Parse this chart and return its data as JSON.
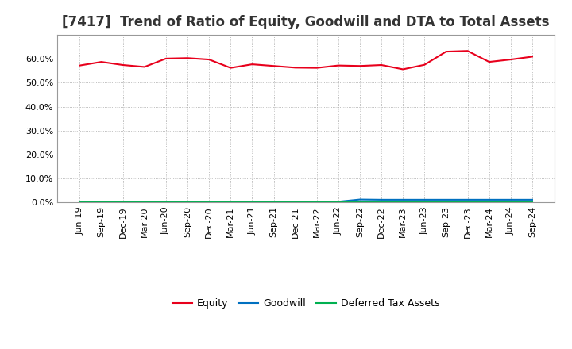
{
  "title": "[7417]  Trend of Ratio of Equity, Goodwill and DTA to Total Assets",
  "x_labels": [
    "Jun-19",
    "Sep-19",
    "Dec-19",
    "Mar-20",
    "Jun-20",
    "Sep-20",
    "Dec-20",
    "Mar-21",
    "Jun-21",
    "Sep-21",
    "Dec-21",
    "Mar-22",
    "Jun-22",
    "Sep-22",
    "Dec-22",
    "Mar-23",
    "Jun-23",
    "Sep-23",
    "Dec-23",
    "Mar-24",
    "Jun-24",
    "Sep-24"
  ],
  "equity": [
    0.572,
    0.587,
    0.574,
    0.566,
    0.601,
    0.603,
    0.597,
    0.562,
    0.577,
    0.57,
    0.563,
    0.562,
    0.572,
    0.57,
    0.574,
    0.556,
    0.575,
    0.63,
    0.633,
    0.587,
    0.597,
    0.609
  ],
  "goodwill": [
    0.003,
    0.003,
    0.003,
    0.003,
    0.003,
    0.003,
    0.003,
    0.003,
    0.003,
    0.003,
    0.003,
    0.003,
    0.003,
    0.012,
    0.011,
    0.011,
    0.011,
    0.011,
    0.011,
    0.011,
    0.011,
    0.011
  ],
  "dta": [
    0.0005,
    0.0005,
    0.0005,
    0.0005,
    0.0005,
    0.0005,
    0.0005,
    0.0005,
    0.0005,
    0.0005,
    0.0005,
    0.0005,
    0.0005,
    0.0005,
    0.0005,
    0.0005,
    0.0005,
    0.0005,
    0.0005,
    0.0005,
    0.0005,
    0.0005
  ],
  "equity_color": "#e8001c",
  "goodwill_color": "#0070c0",
  "dta_color": "#00b050",
  "background_color": "#ffffff",
  "grid_color": "#aaaaaa",
  "ylim": [
    0.0,
    0.7
  ],
  "yticks": [
    0.0,
    0.1,
    0.2,
    0.3,
    0.4,
    0.5,
    0.6
  ],
  "legend_labels": [
    "Equity",
    "Goodwill",
    "Deferred Tax Assets"
  ],
  "title_fontsize": 12,
  "axis_fontsize": 8,
  "legend_fontsize": 9
}
